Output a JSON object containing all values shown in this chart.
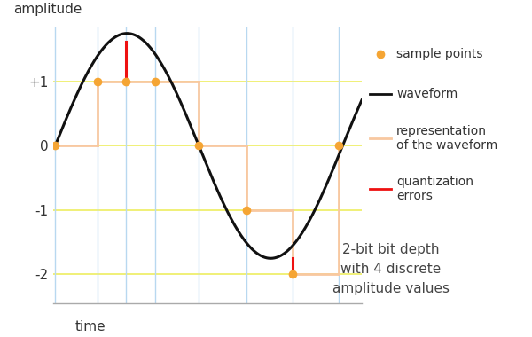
{
  "xlabel": "time",
  "ylabel": "amplitude",
  "background_color": "#ffffff",
  "waveform_color": "#111111",
  "sample_color": "#f5a534",
  "quantization_color": "#ee1111",
  "representation_color": "#f8c8a0",
  "grid_h_color": "#eded60",
  "grid_v_color": "#b8d8f0",
  "ylim": [
    -2.45,
    1.85
  ],
  "xlim": [
    -0.05,
    8.0
  ],
  "quantization_levels": [
    1,
    0,
    -1,
    -2
  ],
  "yticks": [
    -2,
    -1,
    0,
    1
  ],
  "ytick_labels": [
    "-2",
    "-1",
    "0",
    "+1"
  ],
  "annotation_text": "2-bit bit depth\nwith 4 discrete\namplitude values",
  "sample_x": [
    0.0,
    1.1,
    1.85,
    2.6,
    3.75,
    5.0,
    6.2,
    7.4
  ],
  "sample_y_exact": [
    0.0,
    1.05,
    1.62,
    1.05,
    0.04,
    -1.05,
    -1.75,
    0.04
  ],
  "sample_y_quantized": [
    0,
    1,
    1,
    1,
    0,
    -1,
    -2,
    0
  ],
  "amplitude": 1.75,
  "period": 7.5,
  "phase": 0.0,
  "legend_items": [
    {
      "type": "marker",
      "label": "sample points"
    },
    {
      "type": "line_black",
      "label": "waveform"
    },
    {
      "type": "line_rep",
      "label": "representation\nof the waveform"
    },
    {
      "type": "line_red",
      "label": "quantization\nerrors"
    }
  ]
}
